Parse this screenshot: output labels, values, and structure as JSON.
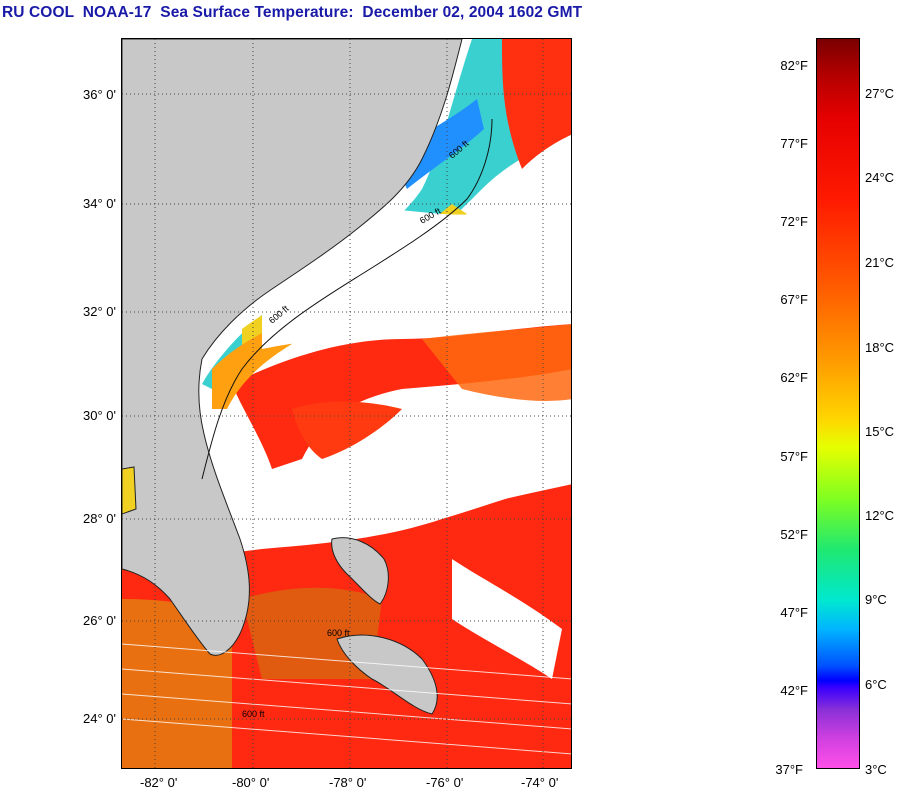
{
  "title": "RU COOL  NOAA-17  Sea Surface Temperature:  December 02, 2004 1602 GMT",
  "map": {
    "lat_labels": [
      "36° 0'",
      "34° 0'",
      "32° 0'",
      "30° 0'",
      "28° 0'",
      "26° 0'",
      "24° 0'"
    ],
    "lon_labels": [
      "-82° 0'",
      "-80° 0'",
      "-78° 0'",
      "-76° 0'",
      "-74° 0'"
    ],
    "isobath_labels": [
      "600 ft",
      "600 ft",
      "600 ft",
      "600 ft",
      "600 ft"
    ],
    "colors": {
      "land": "#c8c8c8",
      "cloud": "#ffffff",
      "grid": "#444444"
    }
  },
  "colorbar": {
    "fahrenheit": [
      "82°F",
      "77°F",
      "72°F",
      "67°F",
      "62°F",
      "57°F",
      "52°F",
      "47°F",
      "42°F",
      "37°F"
    ],
    "celsius": [
      "27°C",
      "24°C",
      "21°C",
      "18°C",
      "15°C",
      "12°C",
      "9°C",
      "6°C",
      "3°C"
    ]
  }
}
